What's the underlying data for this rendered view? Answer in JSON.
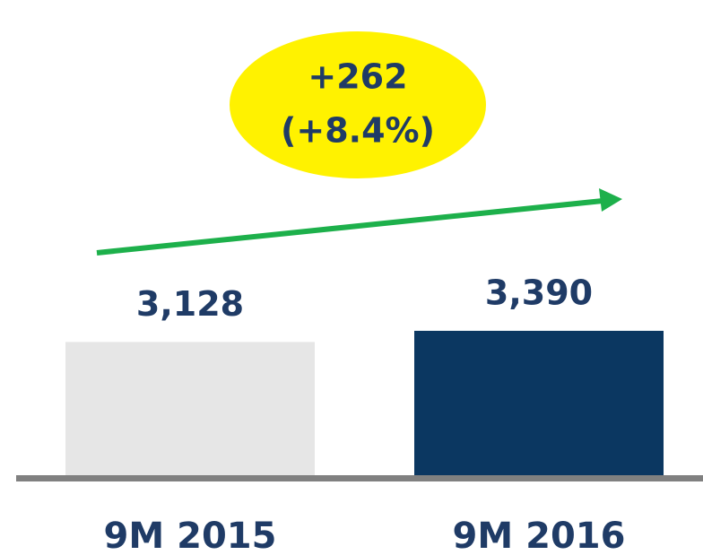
{
  "chart_data": {
    "type": "bar",
    "categories": [
      "9M 2015",
      "9M 2016"
    ],
    "values": [
      3128,
      3390
    ],
    "value_labels": [
      "3,128",
      "3,390"
    ],
    "colors": [
      "#e6e6e6",
      "#0b3761"
    ],
    "ylim": [
      0,
      4000
    ],
    "annotation": [
      "+262",
      "(+8.4%)"
    ]
  }
}
